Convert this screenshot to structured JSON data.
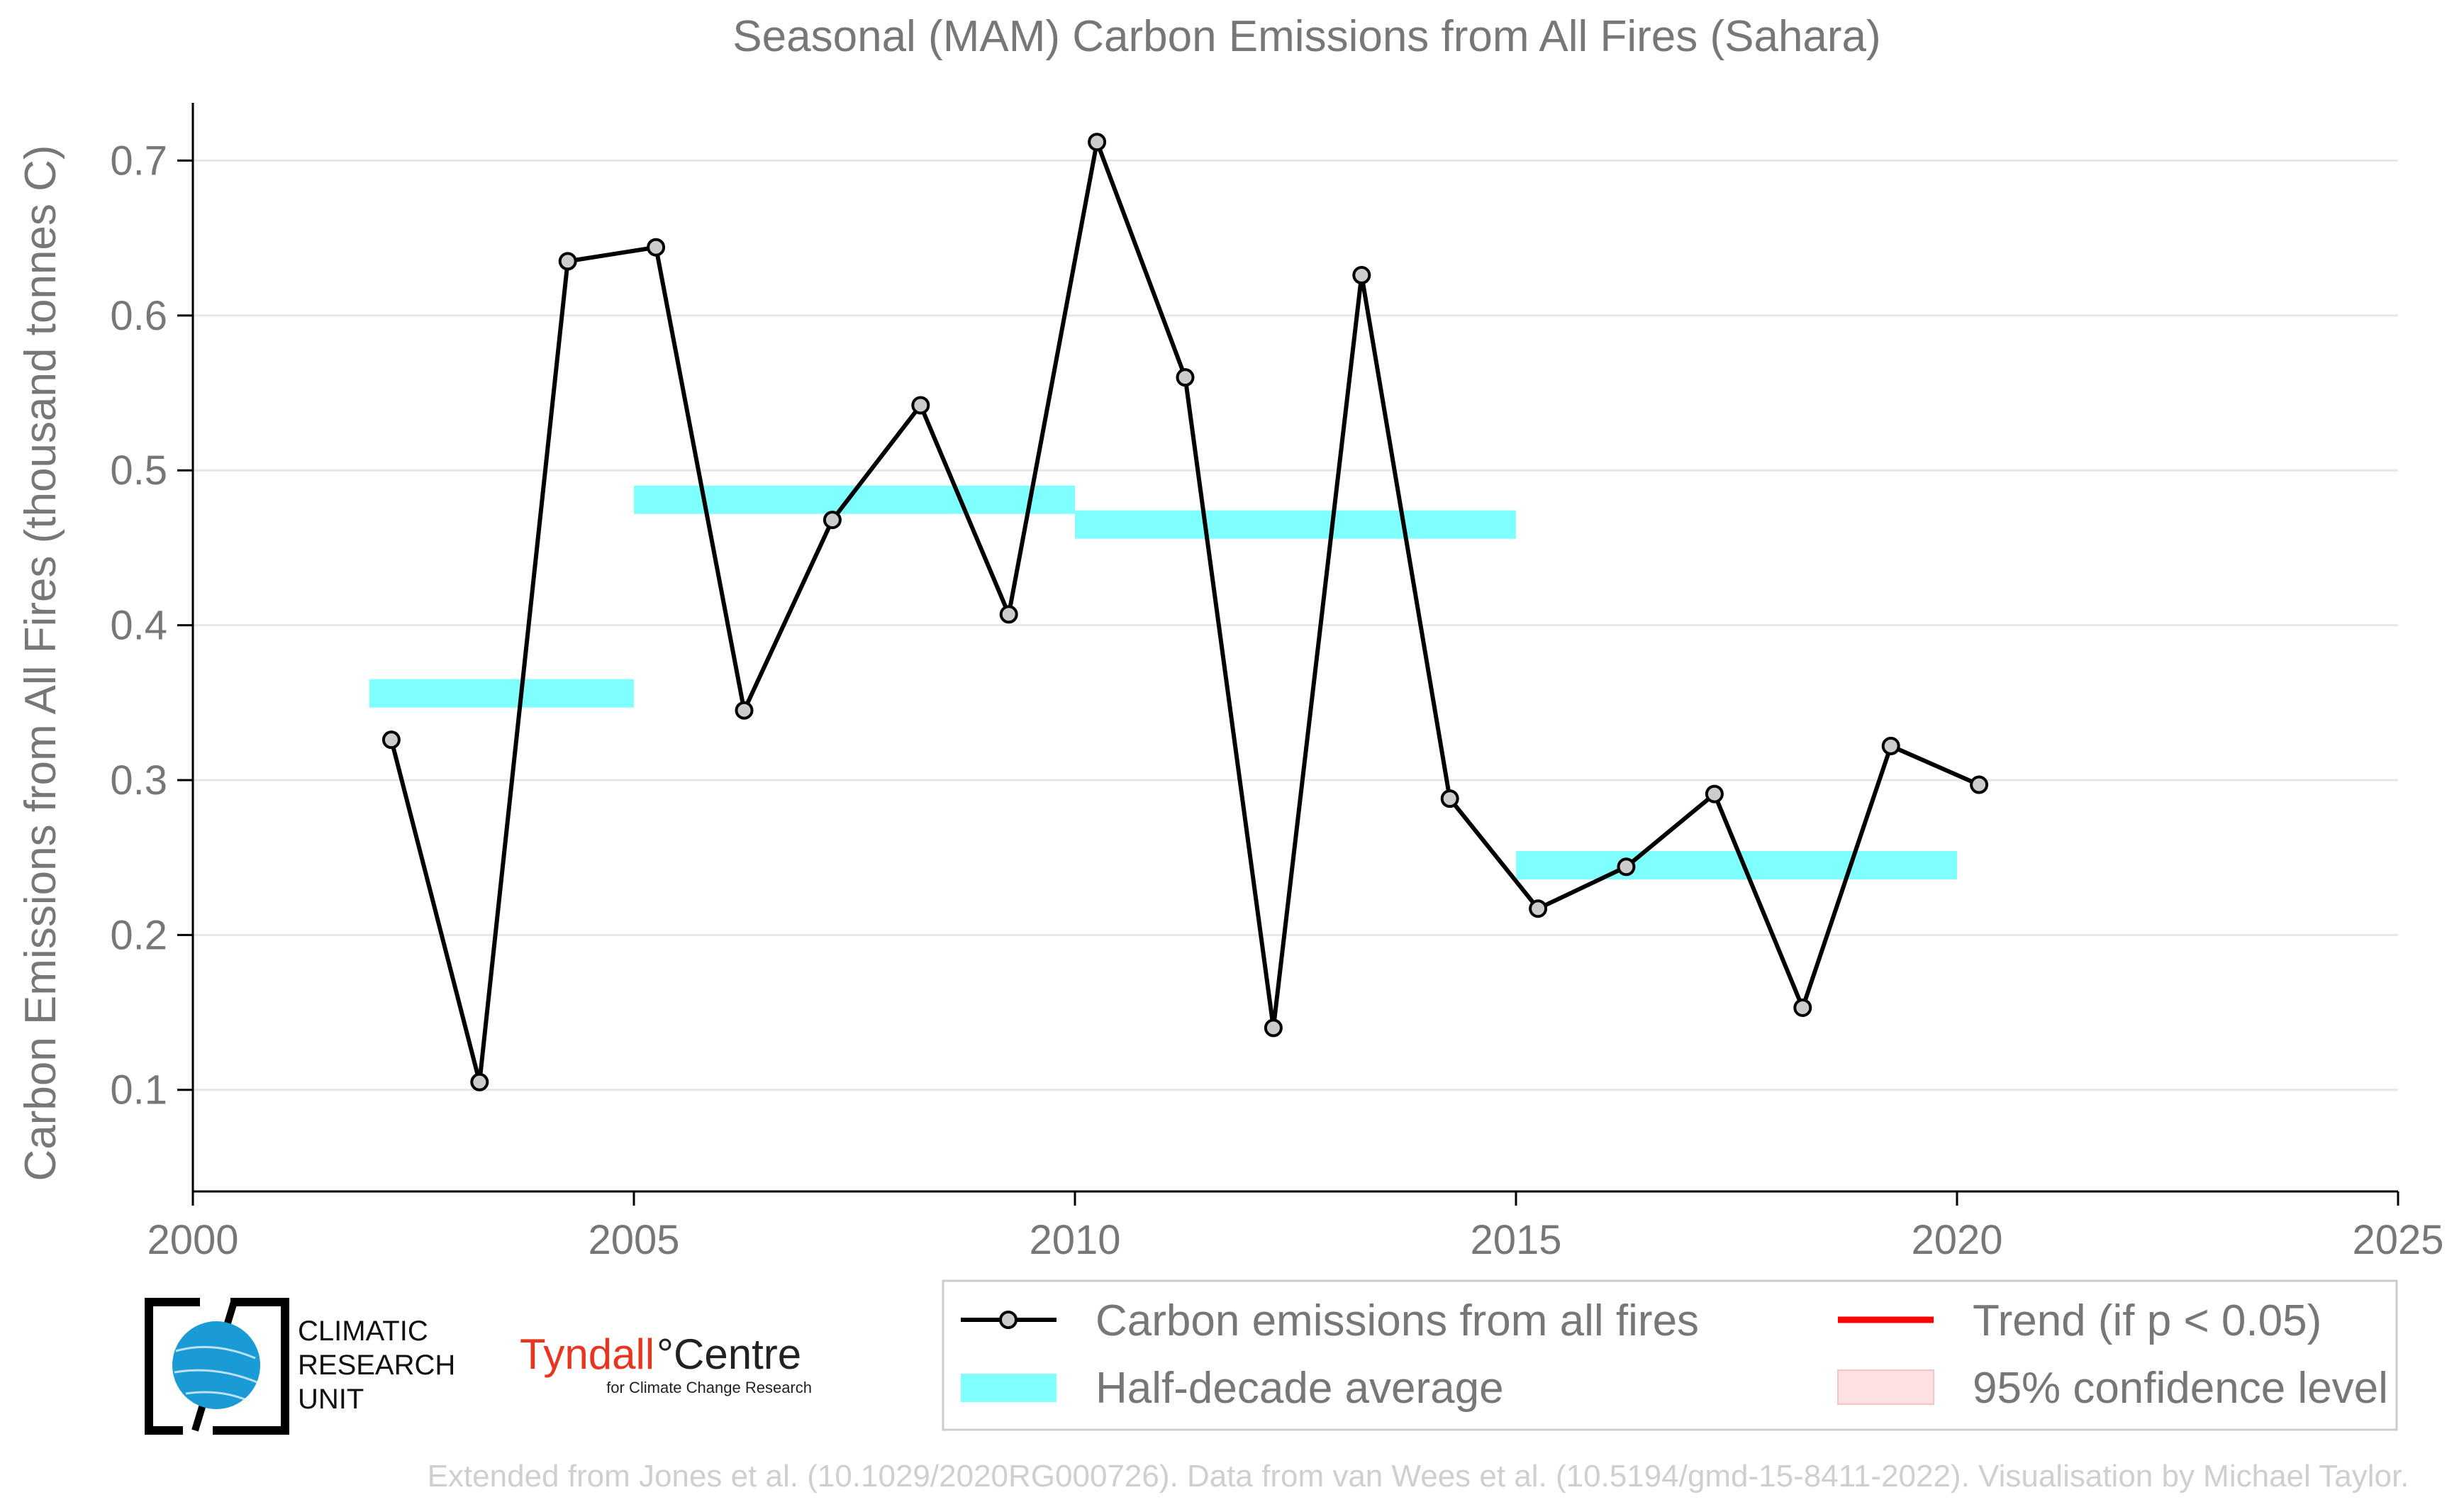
{
  "chart_data": {
    "type": "line",
    "title": "Seasonal (MAM) Carbon Emissions from All Fires (Sahara)",
    "xlabel": "",
    "ylabel": "Carbon Emissions from All Fires (thousand tonnes C)",
    "xlim": [
      2000,
      2025
    ],
    "ylim": [
      0.055,
      0.735
    ],
    "x_ticks": [
      2000,
      2005,
      2010,
      2015,
      2020,
      2025
    ],
    "y_ticks": [
      0.1,
      0.2,
      0.3,
      0.4,
      0.5,
      0.6,
      0.7
    ],
    "grid": "horizontal",
    "series": [
      {
        "name": "Carbon emissions from all fires",
        "color": "#000000",
        "marker_color": "#cccccc",
        "x": [
          2002.25,
          2003.25,
          2004.25,
          2005.25,
          2006.25,
          2007.25,
          2008.25,
          2009.25,
          2010.25,
          2011.25,
          2012.25,
          2013.25,
          2014.25,
          2015.25,
          2016.25,
          2017.25,
          2018.25,
          2019.25,
          2020.25
        ],
        "y": [
          0.326,
          0.105,
          0.635,
          0.644,
          0.345,
          0.468,
          0.542,
          0.407,
          0.712,
          0.56,
          0.14,
          0.626,
          0.288,
          0.217,
          0.244,
          0.291,
          0.153,
          0.322,
          0.297
        ]
      }
    ],
    "half_decade_averages": {
      "name": "Half-decade average",
      "color": "#7fffff",
      "segments": [
        {
          "x_start": 2002,
          "x_end": 2005,
          "value": 0.356
        },
        {
          "x_start": 2005,
          "x_end": 2010,
          "value": 0.481
        },
        {
          "x_start": 2010,
          "x_end": 2015,
          "value": 0.465
        },
        {
          "x_start": 2015,
          "x_end": 2020,
          "value": 0.245
        }
      ]
    },
    "legend": {
      "placement": "bottom-right",
      "entries": [
        {
          "label": "Carbon emissions from all fires",
          "kind": "line-marker",
          "color": "#000000"
        },
        {
          "label": "Trend (if p < 0.05)",
          "kind": "line",
          "color": "#ff0000"
        },
        {
          "label": "Half-decade average",
          "kind": "band",
          "color": "#7fffff"
        },
        {
          "label": "95% confidence level",
          "kind": "fill",
          "color": "#ffe0e0"
        }
      ]
    }
  },
  "logos": {
    "cru_line1": "CLIMATIC",
    "cru_line2": "RESEARCH",
    "cru_line3": "UNIT",
    "tyndall_name": "Tyndall",
    "tyndall_centre": "°Centre",
    "tyndall_sub": "for Climate Change Research"
  },
  "footer": "Extended from Jones et al. (10.1029/2020RG000726). Data from van Wees et al. (10.5194/gmd-15-8411-2022). Visualisation by Michael Taylor."
}
